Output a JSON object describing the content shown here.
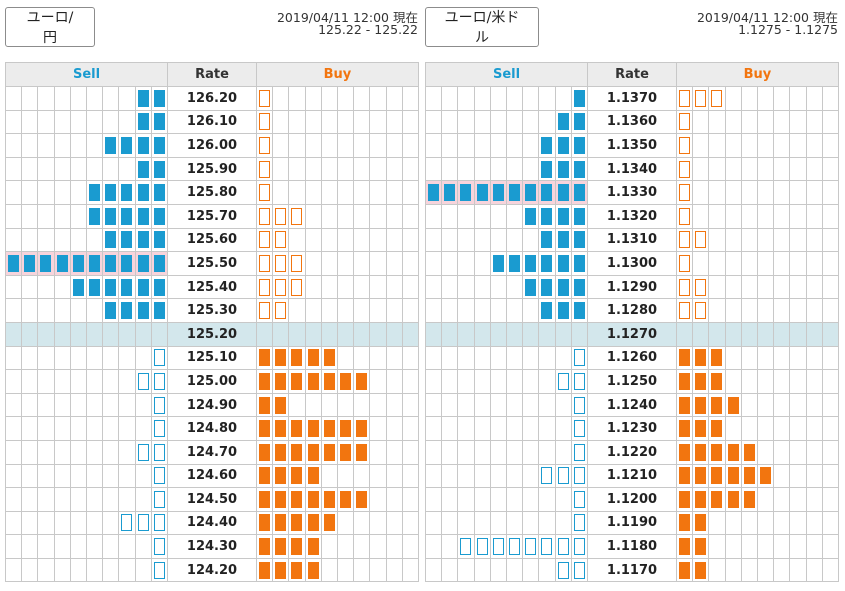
{
  "headers": {
    "sell": "Sell",
    "rate": "Rate",
    "buy": "Buy"
  },
  "colors": {
    "sell": "#1a9bd0",
    "buy": "#f2750f",
    "current_row": "#d3e7ec",
    "highlight_row": "#f7d4dc",
    "header_bg": "#ececec"
  },
  "panels": [
    {
      "pair_label": "ユーロ/円",
      "as_of": "2019/04/11 12:00 現在",
      "quote": "125.22 - 125.22",
      "rows": [
        {
          "rate": "126.20",
          "sell": 2,
          "sell_filled": true,
          "buy": 1,
          "buy_filled": false
        },
        {
          "rate": "126.10",
          "sell": 2,
          "sell_filled": true,
          "buy": 1,
          "buy_filled": false
        },
        {
          "rate": "126.00",
          "sell": 4,
          "sell_filled": true,
          "buy": 1,
          "buy_filled": false
        },
        {
          "rate": "125.90",
          "sell": 2,
          "sell_filled": true,
          "buy": 1,
          "buy_filled": false
        },
        {
          "rate": "125.80",
          "sell": 5,
          "sell_filled": true,
          "buy": 1,
          "buy_filled": false
        },
        {
          "rate": "125.70",
          "sell": 5,
          "sell_filled": true,
          "buy": 3,
          "buy_filled": false
        },
        {
          "rate": "125.60",
          "sell": 4,
          "sell_filled": true,
          "buy": 2,
          "buy_filled": false
        },
        {
          "rate": "125.50",
          "sell": 10,
          "sell_filled": true,
          "buy": 3,
          "buy_filled": false,
          "highlight": true
        },
        {
          "rate": "125.40",
          "sell": 6,
          "sell_filled": true,
          "buy": 3,
          "buy_filled": false
        },
        {
          "rate": "125.30",
          "sell": 4,
          "sell_filled": true,
          "buy": 2,
          "buy_filled": false
        },
        {
          "rate": "125.20",
          "sell": 0,
          "buy": 0,
          "current": true
        },
        {
          "rate": "125.10",
          "sell": 1,
          "sell_filled": false,
          "buy": 5,
          "buy_filled": true
        },
        {
          "rate": "125.00",
          "sell": 2,
          "sell_filled": false,
          "buy": 7,
          "buy_filled": true
        },
        {
          "rate": "124.90",
          "sell": 1,
          "sell_filled": false,
          "buy": 2,
          "buy_filled": true
        },
        {
          "rate": "124.80",
          "sell": 1,
          "sell_filled": false,
          "buy": 7,
          "buy_filled": true
        },
        {
          "rate": "124.70",
          "sell": 2,
          "sell_filled": false,
          "buy": 7,
          "buy_filled": true
        },
        {
          "rate": "124.60",
          "sell": 1,
          "sell_filled": false,
          "buy": 4,
          "buy_filled": true
        },
        {
          "rate": "124.50",
          "sell": 1,
          "sell_filled": false,
          "buy": 7,
          "buy_filled": true
        },
        {
          "rate": "124.40",
          "sell": 3,
          "sell_filled": false,
          "buy": 5,
          "buy_filled": true
        },
        {
          "rate": "124.30",
          "sell": 1,
          "sell_filled": false,
          "buy": 4,
          "buy_filled": true
        },
        {
          "rate": "124.20",
          "sell": 1,
          "sell_filled": false,
          "buy": 4,
          "buy_filled": true
        }
      ]
    },
    {
      "pair_label": "ユーロ/米ドル",
      "as_of": "2019/04/11 12:00 現在",
      "quote": "1.1275 - 1.1275",
      "rows": [
        {
          "rate": "1.1370",
          "sell": 1,
          "sell_filled": true,
          "buy": 3,
          "buy_filled": false
        },
        {
          "rate": "1.1360",
          "sell": 2,
          "sell_filled": true,
          "buy": 1,
          "buy_filled": false
        },
        {
          "rate": "1.1350",
          "sell": 3,
          "sell_filled": true,
          "buy": 1,
          "buy_filled": false
        },
        {
          "rate": "1.1340",
          "sell": 3,
          "sell_filled": true,
          "buy": 1,
          "buy_filled": false
        },
        {
          "rate": "1.1330",
          "sell": 10,
          "sell_filled": true,
          "buy": 1,
          "buy_filled": false,
          "highlight": true
        },
        {
          "rate": "1.1320",
          "sell": 4,
          "sell_filled": true,
          "buy": 1,
          "buy_filled": false
        },
        {
          "rate": "1.1310",
          "sell": 3,
          "sell_filled": true,
          "buy": 2,
          "buy_filled": false
        },
        {
          "rate": "1.1300",
          "sell": 6,
          "sell_filled": true,
          "buy": 1,
          "buy_filled": false
        },
        {
          "rate": "1.1290",
          "sell": 4,
          "sell_filled": true,
          "buy": 2,
          "buy_filled": false
        },
        {
          "rate": "1.1280",
          "sell": 3,
          "sell_filled": true,
          "buy": 2,
          "buy_filled": false
        },
        {
          "rate": "1.1270",
          "sell": 0,
          "buy": 0,
          "current": true
        },
        {
          "rate": "1.1260",
          "sell": 1,
          "sell_filled": false,
          "buy": 3,
          "buy_filled": true
        },
        {
          "rate": "1.1250",
          "sell": 2,
          "sell_filled": false,
          "buy": 3,
          "buy_filled": true
        },
        {
          "rate": "1.1240",
          "sell": 1,
          "sell_filled": false,
          "buy": 4,
          "buy_filled": true
        },
        {
          "rate": "1.1230",
          "sell": 1,
          "sell_filled": false,
          "buy": 3,
          "buy_filled": true
        },
        {
          "rate": "1.1220",
          "sell": 1,
          "sell_filled": false,
          "buy": 5,
          "buy_filled": true
        },
        {
          "rate": "1.1210",
          "sell": 3,
          "sell_filled": false,
          "buy": 6,
          "buy_filled": true
        },
        {
          "rate": "1.1200",
          "sell": 1,
          "sell_filled": false,
          "buy": 5,
          "buy_filled": true
        },
        {
          "rate": "1.1190",
          "sell": 1,
          "sell_filled": false,
          "buy": 2,
          "buy_filled": true
        },
        {
          "rate": "1.1180",
          "sell": 8,
          "sell_filled": false,
          "buy": 2,
          "buy_filled": true
        },
        {
          "rate": "1.1170",
          "sell": 2,
          "sell_filled": false,
          "buy": 2,
          "buy_filled": true
        }
      ]
    }
  ]
}
